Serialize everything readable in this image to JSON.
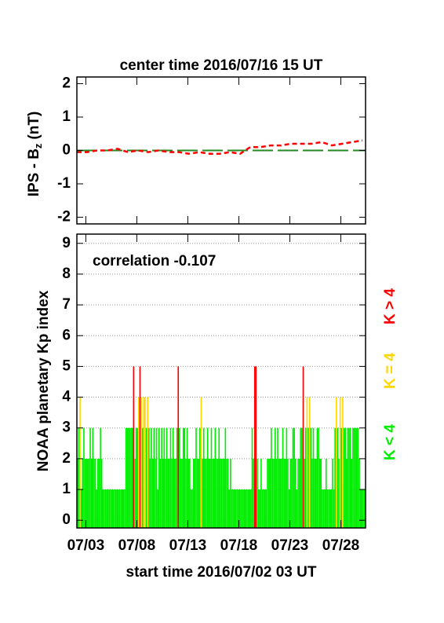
{
  "chart_data": [
    {
      "type": "line",
      "title": "center time 2016/07/16 15 UT",
      "ylabel": {
        "text": "IPS - B",
        "sub": "z",
        "unit": "(nT)"
      },
      "xlim": [
        0,
        28.3
      ],
      "xticks": [
        0.875,
        5.875,
        10.875,
        15.875,
        20.875,
        25.875
      ],
      "ylim": [
        -2.2,
        2.2
      ],
      "yticks": [
        -2,
        -1,
        0,
        1,
        2
      ],
      "x": [
        0,
        1,
        2,
        3,
        4,
        5,
        6,
        7,
        8,
        9,
        10,
        11,
        12,
        13,
        14,
        15,
        16,
        17,
        18,
        19,
        20,
        21,
        22,
        23,
        24,
        25,
        26,
        27,
        28
      ],
      "series": [
        {
          "color": "#ff0000",
          "values": [
            -0.05,
            -0.05,
            0.0,
            0.0,
            0.05,
            -0.05,
            0.0,
            -0.05,
            0.0,
            -0.05,
            -0.05,
            -0.1,
            -0.05,
            -0.1,
            -0.1,
            -0.05,
            -0.1,
            0.1,
            0.1,
            0.15,
            0.15,
            0.2,
            0.2,
            0.2,
            0.25,
            0.15,
            0.2,
            0.25,
            0.3
          ]
        }
      ],
      "reference_line": {
        "value": 0,
        "color": "#228b22"
      }
    },
    {
      "type": "bar",
      "annotation": "correlation -0.107",
      "ylabel": "NOAA planetary Kp index",
      "xlabel": "start time 2016/07/02 03 UT",
      "xlim": [
        0,
        28.3
      ],
      "xticks": [
        {
          "value": 0.875,
          "label": "07/03"
        },
        {
          "value": 5.875,
          "label": "07/08"
        },
        {
          "value": 10.875,
          "label": "07/13"
        },
        {
          "value": 15.875,
          "label": "07/18"
        },
        {
          "value": 20.875,
          "label": "07/23"
        },
        {
          "value": 25.875,
          "label": "07/28"
        }
      ],
      "ylim": [
        -0.25,
        9.3
      ],
      "yticks": [
        0,
        1,
        2,
        3,
        4,
        5,
        6,
        7,
        8,
        9
      ],
      "grid": true,
      "bin_start": 0,
      "bin_width": 0.125,
      "color_threshold": 4,
      "legend": {
        "above": {
          "label": "K > 4",
          "color": "#ff0000"
        },
        "equal": {
          "label": "K = 4",
          "color": "#ffd700"
        },
        "below": {
          "label": "K < 4",
          "color": "#00ee00"
        }
      },
      "values": [
        2,
        3,
        4,
        1,
        2,
        3,
        2,
        2,
        2,
        2,
        3,
        2,
        3,
        2,
        2,
        1,
        2,
        2,
        3,
        2,
        1,
        1,
        1,
        1,
        1,
        1,
        1,
        1,
        1,
        1,
        1,
        1,
        1,
        1,
        1,
        1,
        1,
        1,
        3,
        3,
        3,
        3,
        3,
        3,
        5,
        2,
        3,
        3,
        4,
        5,
        4,
        3,
        4,
        4,
        3,
        4,
        3,
        2,
        3,
        2,
        3,
        2,
        3,
        1,
        3,
        2,
        3,
        2,
        3,
        2,
        3,
        2,
        2,
        3,
        2,
        3,
        2,
        2,
        3,
        5,
        3,
        2,
        2,
        3,
        3,
        2,
        3,
        2,
        2,
        1,
        1,
        2,
        2,
        3,
        2,
        2,
        3,
        4,
        2,
        3,
        2,
        2,
        3,
        2,
        2,
        3,
        2,
        2,
        3,
        2,
        2,
        3,
        2,
        2,
        2,
        2,
        3,
        2,
        2,
        1,
        2,
        1,
        1,
        1,
        1,
        1,
        1,
        1,
        1,
        1,
        1,
        1,
        1,
        1,
        1,
        1,
        1,
        3,
        2,
        5,
        5,
        2,
        1,
        1,
        2,
        1,
        1,
        1,
        1,
        2,
        2,
        2,
        3,
        2,
        2,
        3,
        2,
        3,
        2,
        2,
        2,
        3,
        2,
        2,
        3,
        2,
        1,
        2,
        2,
        3,
        3,
        2,
        1,
        2,
        2,
        3,
        3,
        5,
        2,
        3,
        4,
        3,
        4,
        3,
        2,
        3,
        2,
        2,
        3,
        3,
        2,
        2,
        1,
        1,
        1,
        2,
        1,
        1,
        1,
        1,
        2,
        1,
        3,
        4,
        3,
        2,
        4,
        3,
        4,
        3,
        3,
        2,
        3,
        3,
        3,
        2,
        3,
        3,
        3,
        3,
        3,
        2,
        1,
        1,
        1,
        1
      ]
    }
  ]
}
